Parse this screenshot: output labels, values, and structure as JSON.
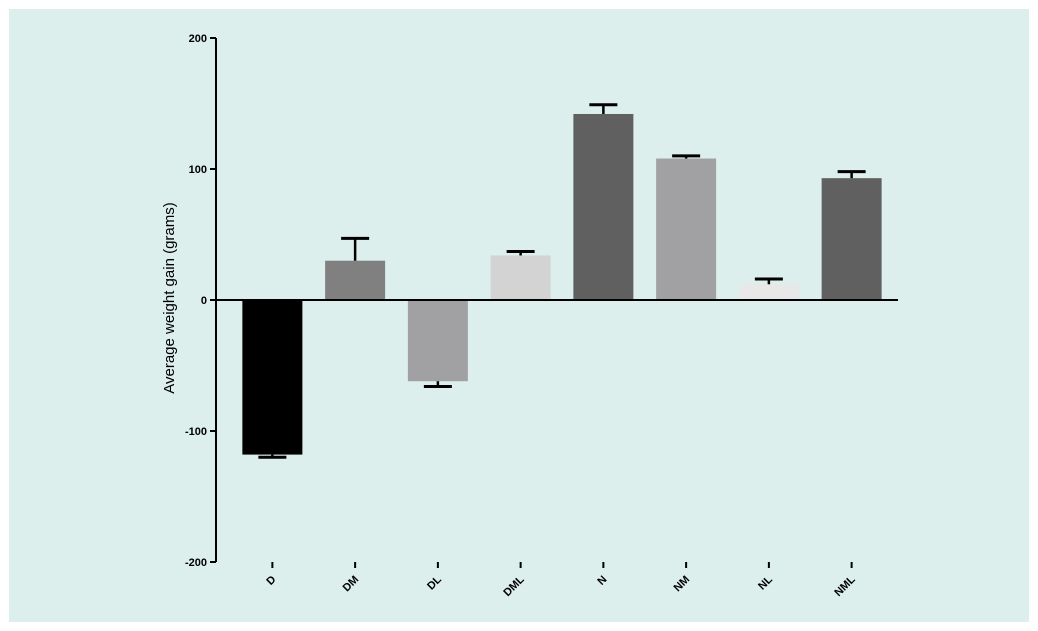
{
  "chart_data": {
    "type": "bar",
    "title": "",
    "xlabel": "",
    "ylabel": "Average weight gain (grams)",
    "ylim": [
      -200,
      200
    ],
    "yticks": [
      200,
      100,
      0,
      -100,
      -200
    ],
    "ytick_labels": [
      "200",
      "100",
      "0",
      "-100",
      "-200"
    ],
    "categories": [
      "D",
      "DM",
      "DL",
      "DML",
      "N",
      "NM",
      "NL",
      "NML"
    ],
    "values": [
      -118,
      30,
      -62,
      34,
      142,
      108,
      12,
      93
    ],
    "errors": [
      2,
      17,
      4,
      3,
      7,
      2,
      4,
      5
    ],
    "colors": [
      "#000000",
      "#808080",
      "#a1a1a3",
      "#d3d3d3",
      "#606060",
      "#a1a1a3",
      "#e8e8e8",
      "#606060"
    ],
    "background_color": "#dcefec",
    "grid": false,
    "legend": "none"
  }
}
